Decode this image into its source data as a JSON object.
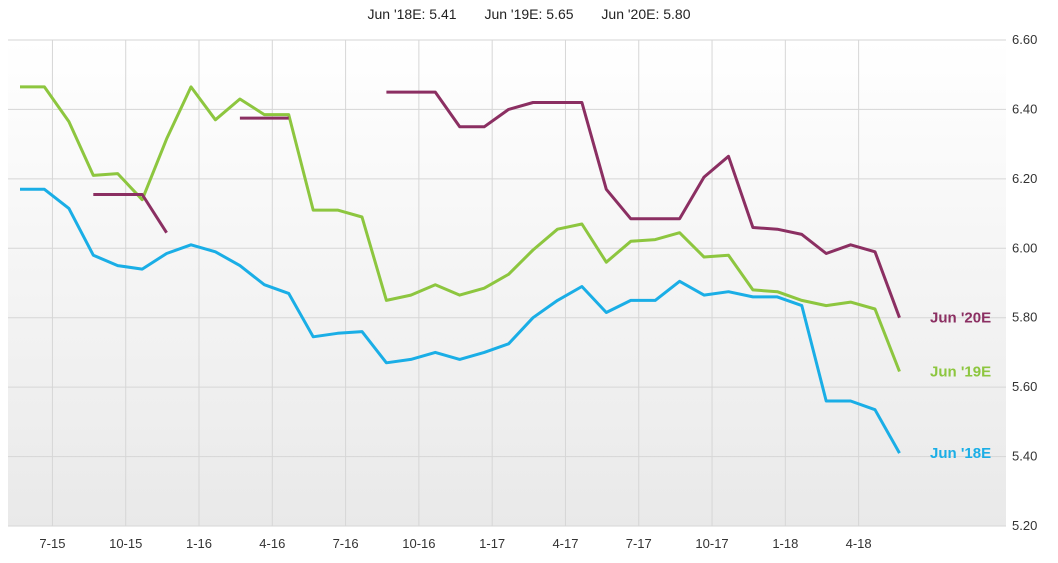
{
  "legend": {
    "jun18": "Jun '18E: 5.41",
    "jun19": "Jun '19E: 5.65",
    "jun20": "Jun '20E: 5.80"
  },
  "chart_data": {
    "type": "line",
    "ylim": [
      5.2,
      6.6
    ],
    "yticks": [
      "5.20",
      "5.40",
      "5.60",
      "5.80",
      "6.00",
      "6.20",
      "6.40",
      "6.60"
    ],
    "xticks": [
      "7-15",
      "10-15",
      "1-16",
      "4-16",
      "7-16",
      "10-16",
      "1-17",
      "4-17",
      "7-17",
      "10-17",
      "1-18",
      "4-18"
    ],
    "grid": true,
    "series": [
      {
        "name": "Jun '18E",
        "color": "#1aaee6",
        "points": [
          [
            0,
            6.17
          ],
          [
            1,
            6.17
          ],
          [
            2,
            6.115
          ],
          [
            3,
            5.98
          ],
          [
            4,
            5.95
          ],
          [
            5,
            5.94
          ],
          [
            6,
            5.985
          ],
          [
            7,
            6.01
          ],
          [
            8,
            5.99
          ],
          [
            9,
            5.95
          ],
          [
            10,
            5.895
          ],
          [
            11,
            5.87
          ],
          [
            12,
            5.745
          ],
          [
            13,
            5.755
          ],
          [
            14,
            5.76
          ],
          [
            15,
            5.67
          ],
          [
            16,
            5.68
          ],
          [
            17,
            5.7
          ],
          [
            18,
            5.68
          ],
          [
            19,
            5.7
          ],
          [
            20,
            5.725
          ],
          [
            21,
            5.8
          ],
          [
            22,
            5.85
          ],
          [
            23,
            5.89
          ],
          [
            24,
            5.815
          ],
          [
            25,
            5.85
          ],
          [
            26,
            5.85
          ],
          [
            27,
            5.905
          ],
          [
            28,
            5.865
          ],
          [
            29,
            5.875
          ],
          [
            30,
            5.86
          ],
          [
            31,
            5.86
          ],
          [
            32,
            5.835
          ],
          [
            33,
            5.56
          ],
          [
            34,
            5.56
          ],
          [
            35,
            5.535
          ],
          [
            36,
            5.41
          ]
        ]
      },
      {
        "name": "Jun '19E",
        "color": "#8dc63f",
        "points": [
          [
            0,
            6.465
          ],
          [
            1,
            6.465
          ],
          [
            2,
            6.365
          ],
          [
            3,
            6.21
          ],
          [
            4,
            6.215
          ],
          [
            5,
            6.14
          ],
          [
            6,
            6.315
          ],
          [
            7,
            6.465
          ],
          [
            8,
            6.37
          ],
          [
            9,
            6.43
          ],
          [
            10,
            6.385
          ],
          [
            11,
            6.385
          ],
          [
            12,
            6.11
          ],
          [
            13,
            6.11
          ],
          [
            14,
            6.09
          ],
          [
            15,
            5.85
          ],
          [
            16,
            5.865
          ],
          [
            17,
            5.895
          ],
          [
            18,
            5.865
          ],
          [
            19,
            5.885
          ],
          [
            20,
            5.925
          ],
          [
            21,
            5.995
          ],
          [
            22,
            6.055
          ],
          [
            23,
            6.07
          ],
          [
            24,
            5.96
          ],
          [
            25,
            6.02
          ],
          [
            26,
            6.025
          ],
          [
            27,
            6.045
          ],
          [
            28,
            5.975
          ],
          [
            29,
            5.98
          ],
          [
            30,
            5.88
          ],
          [
            31,
            5.875
          ],
          [
            32,
            5.85
          ],
          [
            33,
            5.835
          ],
          [
            34,
            5.845
          ],
          [
            35,
            5.825
          ],
          [
            36,
            5.645
          ]
        ]
      },
      {
        "name": "Jun '20E",
        "color": "#8b2f62",
        "points": [
          [
            3,
            6.155
          ],
          [
            4,
            6.155
          ],
          [
            5,
            6.155
          ],
          [
            6,
            6.045
          ],
          [
            9,
            6.375
          ],
          [
            10,
            6.375
          ],
          [
            11,
            6.375
          ],
          [
            15,
            6.45
          ],
          [
            16,
            6.45
          ],
          [
            17,
            6.45
          ],
          [
            18,
            6.35
          ],
          [
            19,
            6.35
          ],
          [
            20,
            6.4
          ],
          [
            21,
            6.42
          ],
          [
            22,
            6.42
          ],
          [
            23,
            6.42
          ],
          [
            24,
            6.17
          ],
          [
            25,
            6.085
          ],
          [
            26,
            6.085
          ],
          [
            27,
            6.085
          ],
          [
            28,
            6.205
          ],
          [
            29,
            6.265
          ],
          [
            30,
            6.06
          ],
          [
            31,
            6.055
          ],
          [
            32,
            6.04
          ],
          [
            33,
            5.985
          ],
          [
            34,
            6.01
          ],
          [
            35,
            5.99
          ],
          [
            36,
            5.8
          ]
        ],
        "segments": [
          [
            3,
            6
          ],
          [
            9,
            11
          ],
          [
            15,
            36
          ]
        ]
      }
    ],
    "end_labels": [
      "Jun '20E",
      "Jun '19E",
      "Jun '18E"
    ]
  }
}
